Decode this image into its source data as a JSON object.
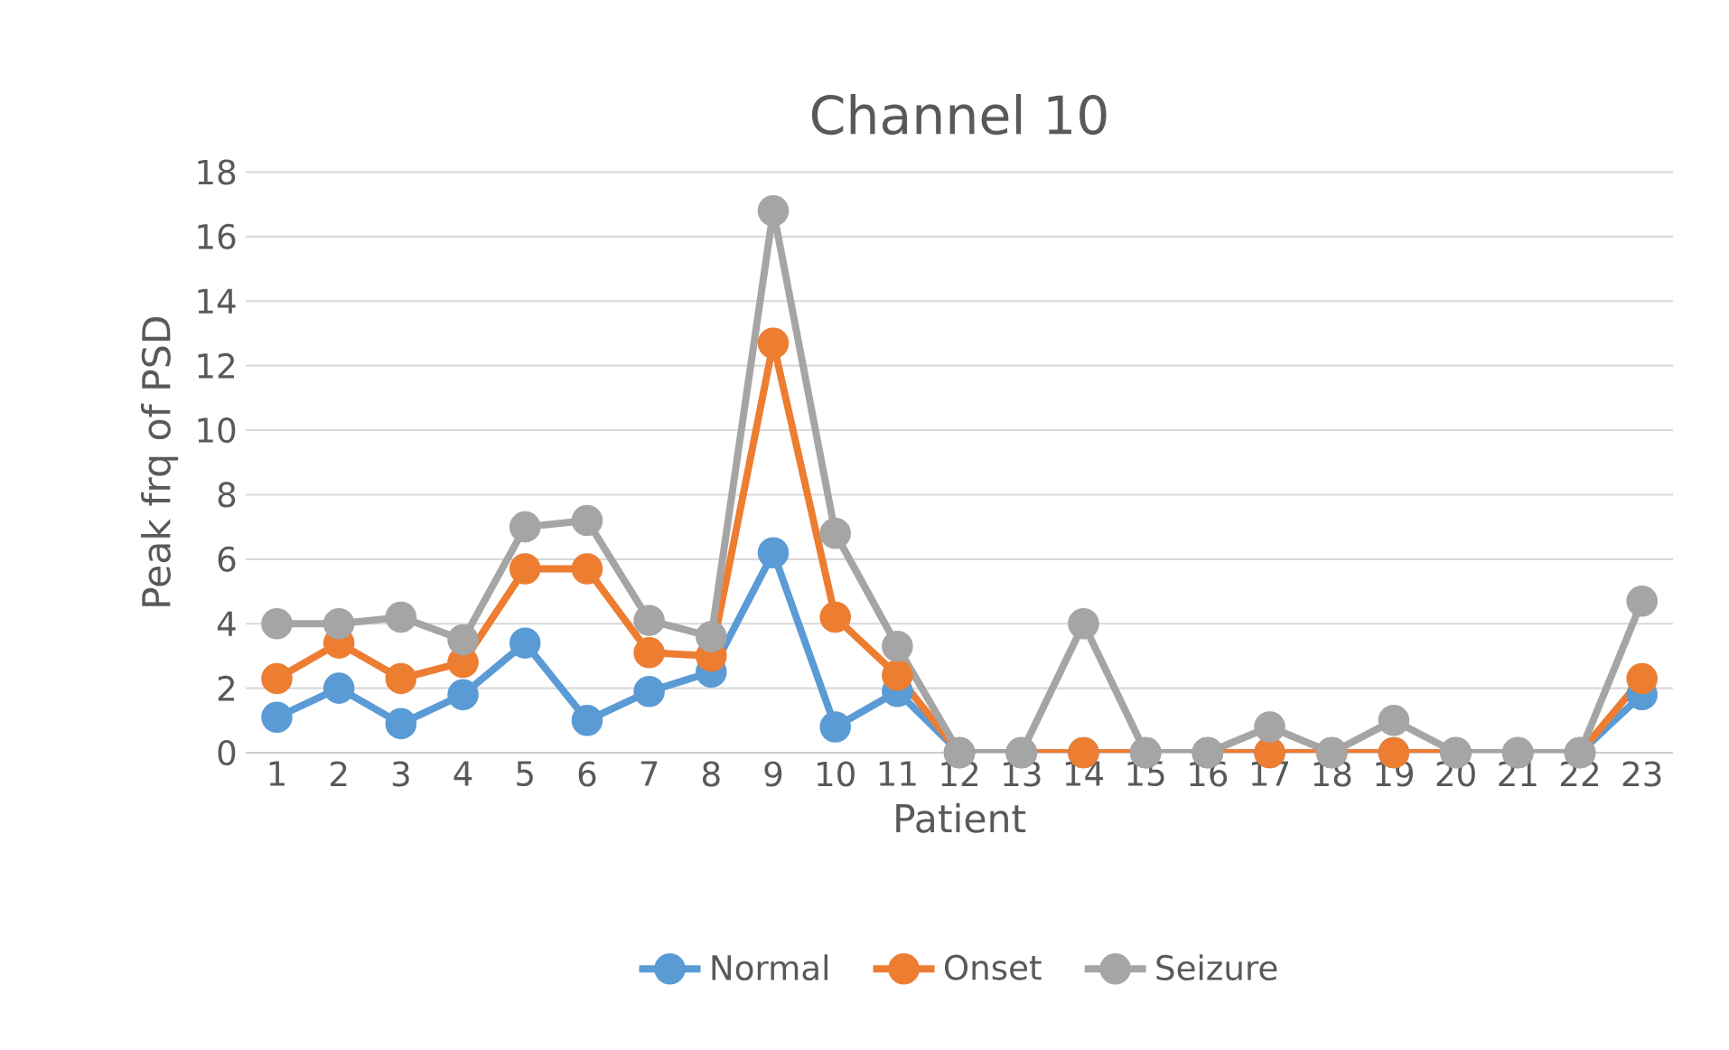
{
  "chart_data": {
    "type": "line",
    "title": "Channel 10",
    "xlabel": "Patient",
    "ylabel": "Peak frq of PSD",
    "categories": [
      "1",
      "2",
      "3",
      "4",
      "5",
      "6",
      "7",
      "8",
      "9",
      "10",
      "11",
      "12",
      "13",
      "14",
      "15",
      "16",
      "17",
      "18",
      "19",
      "20",
      "21",
      "22",
      "23"
    ],
    "series": [
      {
        "name": "Normal",
        "color": "#5b9bd5",
        "values": [
          1.1,
          2.0,
          0.9,
          1.8,
          3.4,
          1.0,
          1.9,
          2.5,
          6.2,
          0.8,
          1.9,
          0,
          0,
          0,
          0,
          0,
          0,
          0,
          0,
          0,
          0,
          0,
          1.8
        ]
      },
      {
        "name": "Onset",
        "color": "#ed7d31",
        "values": [
          2.3,
          3.4,
          2.3,
          2.8,
          5.7,
          5.7,
          3.1,
          3.0,
          12.7,
          4.2,
          2.4,
          0,
          0,
          0,
          0,
          0,
          0,
          0,
          0,
          0,
          0,
          0,
          2.3
        ]
      },
      {
        "name": "Seizure",
        "color": "#a5a5a5",
        "values": [
          4.0,
          4.0,
          4.2,
          3.5,
          7.0,
          7.2,
          4.1,
          3.6,
          16.8,
          6.8,
          3.3,
          0,
          0,
          4.0,
          0,
          0,
          0.8,
          0,
          1.0,
          0,
          0,
          0,
          4.7
        ]
      }
    ],
    "ylim": [
      0,
      18
    ],
    "yticks": [
      0,
      2,
      4,
      6,
      8,
      10,
      12,
      14,
      16,
      18
    ],
    "grid": "y",
    "legend": "bottom",
    "marker": "circle",
    "line_style": "solid"
  }
}
